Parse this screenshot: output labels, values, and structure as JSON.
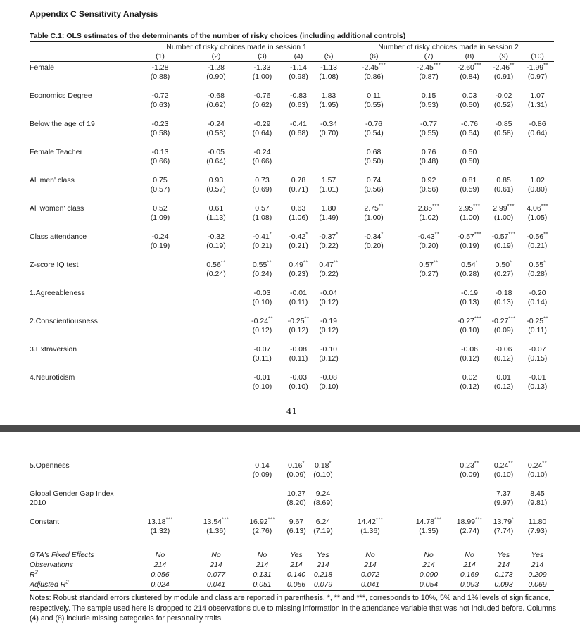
{
  "doc": {
    "appendix_title": "Appendix C Sensitivity Analysis",
    "page_number": "41"
  },
  "table": {
    "title": "Table C.1: OLS estimates of the determinants of the number of risky choices (including additional controls)",
    "groups": [
      {
        "label": "Number of risky choices made in session 1"
      },
      {
        "label": "Number of risky choices made in session 2"
      }
    ],
    "col_numbers": [
      "(1)",
      "(2)",
      "(3)",
      "(4)",
      "(5)",
      "(6)",
      "(7)",
      "(8)",
      "(9)",
      "(10)"
    ],
    "rows_page1": [
      {
        "label": "Female",
        "cells": [
          {
            "c": "-1.28",
            "se": "(0.88)"
          },
          {
            "c": "-1.28",
            "se": "(0.90)"
          },
          {
            "c": "-1.33",
            "se": "(1.00)"
          },
          {
            "c": "-1.14",
            "se": "(0.98)"
          },
          {
            "c": "-1.13",
            "se": "(1.08)"
          },
          {
            "c": "-2.45",
            "s": "***",
            "se": "(0.86)"
          },
          {
            "c": "-2.45",
            "s": "***",
            "se": "(0.87)"
          },
          {
            "c": "-2.60",
            "s": "***",
            "se": "(0.84)"
          },
          {
            "c": "-2.46",
            "s": "**",
            "se": "(0.91)"
          },
          {
            "c": "-1.99",
            "s": "**",
            "se": "(0.97)"
          }
        ]
      },
      {
        "label": "Economics Degree",
        "cells": [
          {
            "c": "-0.72",
            "se": "(0.63)"
          },
          {
            "c": "-0.68",
            "se": "(0.62)"
          },
          {
            "c": "-0.76",
            "se": "(0.62)"
          },
          {
            "c": "-0.83",
            "se": "(0.63)"
          },
          {
            "c": "1.83",
            "se": "(1.95)"
          },
          {
            "c": "0.11",
            "se": "(0.55)"
          },
          {
            "c": "0.15",
            "se": "(0.53)"
          },
          {
            "c": "0.03",
            "se": "(0.50)"
          },
          {
            "c": "-0.02",
            "se": "(0.52)"
          },
          {
            "c": "1.07",
            "se": "(1.31)"
          }
        ]
      },
      {
        "label": "Below the age of 19",
        "cells": [
          {
            "c": "-0.23",
            "se": "(0.58)"
          },
          {
            "c": "-0.24",
            "se": "(0.58)"
          },
          {
            "c": "-0.29",
            "se": "(0.64)"
          },
          {
            "c": "-0.41",
            "se": "(0.68)"
          },
          {
            "c": "-0.34",
            "se": "(0.70)"
          },
          {
            "c": "-0.76",
            "se": "(0.54)"
          },
          {
            "c": "-0.77",
            "se": "(0.55)"
          },
          {
            "c": "-0.76",
            "se": "(0.54)"
          },
          {
            "c": "-0.85",
            "se": "(0.58)"
          },
          {
            "c": "-0.86",
            "se": "(0.64)"
          }
        ]
      },
      {
        "label": "Female Teacher",
        "cells": [
          {
            "c": "-0.13",
            "se": "(0.66)"
          },
          {
            "c": "-0.05",
            "se": "(0.64)"
          },
          {
            "c": "-0.24",
            "se": "(0.66)"
          },
          null,
          null,
          {
            "c": "0.68",
            "se": "(0.50)"
          },
          {
            "c": "0.76",
            "se": "(0.48)"
          },
          {
            "c": "0.50",
            "se": "(0.50)"
          },
          null,
          null
        ]
      },
      {
        "label": "All men' class",
        "cells": [
          {
            "c": "0.75",
            "se": "(0.57)"
          },
          {
            "c": "0.93",
            "se": "(0.57)"
          },
          {
            "c": "0.73",
            "se": "(0.69)"
          },
          {
            "c": "0.78",
            "se": "(0.71)"
          },
          {
            "c": "1.57",
            "se": "(1.01)"
          },
          {
            "c": "0.74",
            "se": "(0.56)"
          },
          {
            "c": "0.92",
            "se": "(0.56)"
          },
          {
            "c": "0.81",
            "se": "(0.59)"
          },
          {
            "c": "0.85",
            "se": "(0.61)"
          },
          {
            "c": "1.02",
            "se": "(0.80)"
          }
        ]
      },
      {
        "label": "All women' class",
        "cells": [
          {
            "c": "0.52",
            "se": "(1.09)"
          },
          {
            "c": "0.61",
            "se": "(1.13)"
          },
          {
            "c": "0.57",
            "se": "(1.08)"
          },
          {
            "c": "0.63",
            "se": "(1.06)"
          },
          {
            "c": "1.80",
            "se": "(1.49)"
          },
          {
            "c": "2.75",
            "s": "**",
            "se": "(1.00)"
          },
          {
            "c": "2.85",
            "s": "***",
            "se": "(1.02)"
          },
          {
            "c": "2.95",
            "s": "***",
            "se": "(1.00)"
          },
          {
            "c": "2.99",
            "s": "***",
            "se": "(1.00)"
          },
          {
            "c": "4.06",
            "s": "***",
            "se": "(1.05)"
          }
        ]
      },
      {
        "label": "Class attendance",
        "cells": [
          {
            "c": "-0.24",
            "se": "(0.19)"
          },
          {
            "c": "-0.32",
            "se": "(0.19)"
          },
          {
            "c": "-0.41",
            "s": "*",
            "se": "(0.21)"
          },
          {
            "c": "-0.42",
            "s": "*",
            "se": "(0.21)"
          },
          {
            "c": "-0.37",
            "s": "*",
            "se": "(0.22)"
          },
          {
            "c": "-0.34",
            "s": "*",
            "se": "(0.20)"
          },
          {
            "c": "-0.43",
            "s": "**",
            "se": "(0.20)"
          },
          {
            "c": "-0.57",
            "s": "***",
            "se": "(0.19)"
          },
          {
            "c": "-0.57",
            "s": "***",
            "se": "(0.19)"
          },
          {
            "c": "-0.56",
            "s": "**",
            "se": "(0.21)"
          }
        ]
      },
      {
        "label": "Z-score IQ test",
        "cells": [
          null,
          {
            "c": "0.56",
            "s": "**",
            "se": "(0.24)"
          },
          {
            "c": "0.55",
            "s": "**",
            "se": "(0.24)"
          },
          {
            "c": "0.49",
            "s": "**",
            "se": "(0.23)"
          },
          {
            "c": "0.47",
            "s": "**",
            "se": "(0.22)"
          },
          null,
          {
            "c": "0.57",
            "s": "**",
            "se": "(0.27)"
          },
          {
            "c": "0.54",
            "s": "*",
            "se": "(0.28)"
          },
          {
            "c": "0.50",
            "s": "*",
            "se": "(0.27)"
          },
          {
            "c": "0.55",
            "s": "*",
            "se": "(0.28)"
          }
        ]
      },
      {
        "label": "1.Agreeableness",
        "cells": [
          null,
          null,
          {
            "c": "-0.03",
            "se": "(0.10)"
          },
          {
            "c": "-0.01",
            "se": "(0.11)"
          },
          {
            "c": "-0.04",
            "se": "(0.12)"
          },
          null,
          null,
          {
            "c": "-0.19",
            "se": "(0.13)"
          },
          {
            "c": "-0.18",
            "se": "(0.13)"
          },
          {
            "c": "-0.20",
            "se": "(0.14)"
          }
        ]
      },
      {
        "label": "2.Conscientiousness",
        "cells": [
          null,
          null,
          {
            "c": "-0.24",
            "s": "**",
            "se": "(0.12)"
          },
          {
            "c": "-0.25",
            "s": "**",
            "se": "(0.12)"
          },
          {
            "c": "-0.19",
            "se": "(0.12)"
          },
          null,
          null,
          {
            "c": "-0.27",
            "s": "***",
            "se": "(0.10)"
          },
          {
            "c": "-0.27",
            "s": "***",
            "se": "(0.09)"
          },
          {
            "c": "-0.25",
            "s": "**",
            "se": "(0.11)"
          }
        ]
      },
      {
        "label": "3.Extraversion",
        "cells": [
          null,
          null,
          {
            "c": "-0.07",
            "se": "(0.11)"
          },
          {
            "c": "-0.08",
            "se": "(0.11)"
          },
          {
            "c": "-0.10",
            "se": "(0.12)"
          },
          null,
          null,
          {
            "c": "-0.06",
            "se": "(0.12)"
          },
          {
            "c": "-0.06",
            "se": "(0.12)"
          },
          {
            "c": "-0.07",
            "se": "(0.15)"
          }
        ]
      },
      {
        "label": "4.Neuroticism",
        "cells": [
          null,
          null,
          {
            "c": "-0.01",
            "se": "(0.10)"
          },
          {
            "c": "-0.03",
            "se": "(0.10)"
          },
          {
            "c": "-0.08",
            "se": "(0.10)"
          },
          null,
          null,
          {
            "c": "0.02",
            "se": "(0.12)"
          },
          {
            "c": "0.01",
            "se": "(0.12)"
          },
          {
            "c": "-0.01",
            "se": "(0.13)"
          }
        ]
      }
    ],
    "rows_page2": [
      {
        "label": "5.Openness",
        "cells": [
          null,
          null,
          {
            "c": "0.14",
            "se": "(0.09)"
          },
          {
            "c": "0.16",
            "s": "*",
            "se": "(0.09)"
          },
          {
            "c": "0.18",
            "s": "*",
            "se": "(0.10)"
          },
          null,
          null,
          {
            "c": "0.23",
            "s": "**",
            "se": "(0.09)"
          },
          {
            "c": "0.24",
            "s": "**",
            "se": "(0.10)"
          },
          {
            "c": "0.24",
            "s": "**",
            "se": "(0.10)"
          }
        ]
      },
      {
        "label": "Global Gender Gap Index",
        "label2": "2010",
        "cells": [
          null,
          null,
          null,
          {
            "c": "10.27",
            "se": "(8.20)"
          },
          {
            "c": "9.24",
            "se": "(8.69)"
          },
          null,
          null,
          null,
          {
            "c": "7.37",
            "se": "(9.97)"
          },
          {
            "c": "8.45",
            "se": "(9.81)"
          }
        ]
      },
      {
        "label": "Constant",
        "cells": [
          {
            "c": "13.18",
            "s": "***",
            "se": "(1.32)"
          },
          {
            "c": "13.54",
            "s": "***",
            "se": "(1.36)"
          },
          {
            "c": "16.92",
            "s": "***",
            "se": "(2.76)"
          },
          {
            "c": "9.67",
            "se": "(6.13)"
          },
          {
            "c": "6.24",
            "se": "(7.19)"
          },
          {
            "c": "14.42",
            "s": "***",
            "se": "(1.36)"
          },
          {
            "c": "14.78",
            "s": "***",
            "se": "(1.35)"
          },
          {
            "c": "18.99",
            "s": "***",
            "se": "(2.74)"
          },
          {
            "c": "13.79",
            "s": "*",
            "se": "(7.74)"
          },
          {
            "c": "11.80",
            "se": "(7.93)"
          }
        ]
      }
    ],
    "stats": [
      {
        "label": "GTA's Fixed Effects",
        "values": [
          "No",
          "No",
          "No",
          "Yes",
          "Yes",
          "No",
          "No",
          "No",
          "Yes",
          "Yes"
        ]
      },
      {
        "label": "Observations",
        "values": [
          "214",
          "214",
          "214",
          "214",
          "214",
          "214",
          "214",
          "214",
          "214",
          "214"
        ]
      },
      {
        "label": "R",
        "sup": "2",
        "values": [
          "0.056",
          "0.077",
          "0.131",
          "0.140",
          "0.218",
          "0.072",
          "0.090",
          "0.169",
          "0.173",
          "0.209"
        ]
      },
      {
        "label": "Adjusted R",
        "sup": "2",
        "values": [
          "0.024",
          "0.041",
          "0.051",
          "0.056",
          "0.079",
          "0.041",
          "0.054",
          "0.093",
          "0.093",
          "0.069"
        ]
      }
    ],
    "notes": "Notes: Robust standard errors clustered by module and class are reported in parenthesis. *, ** and ***, corresponds to 10%, 5% and 1% levels of significance, respectively. The sample used here is dropped to 214 observations due to missing information in the attendance variable that was not included before. Columns (4) and (8) include missing categories for personality traits."
  }
}
